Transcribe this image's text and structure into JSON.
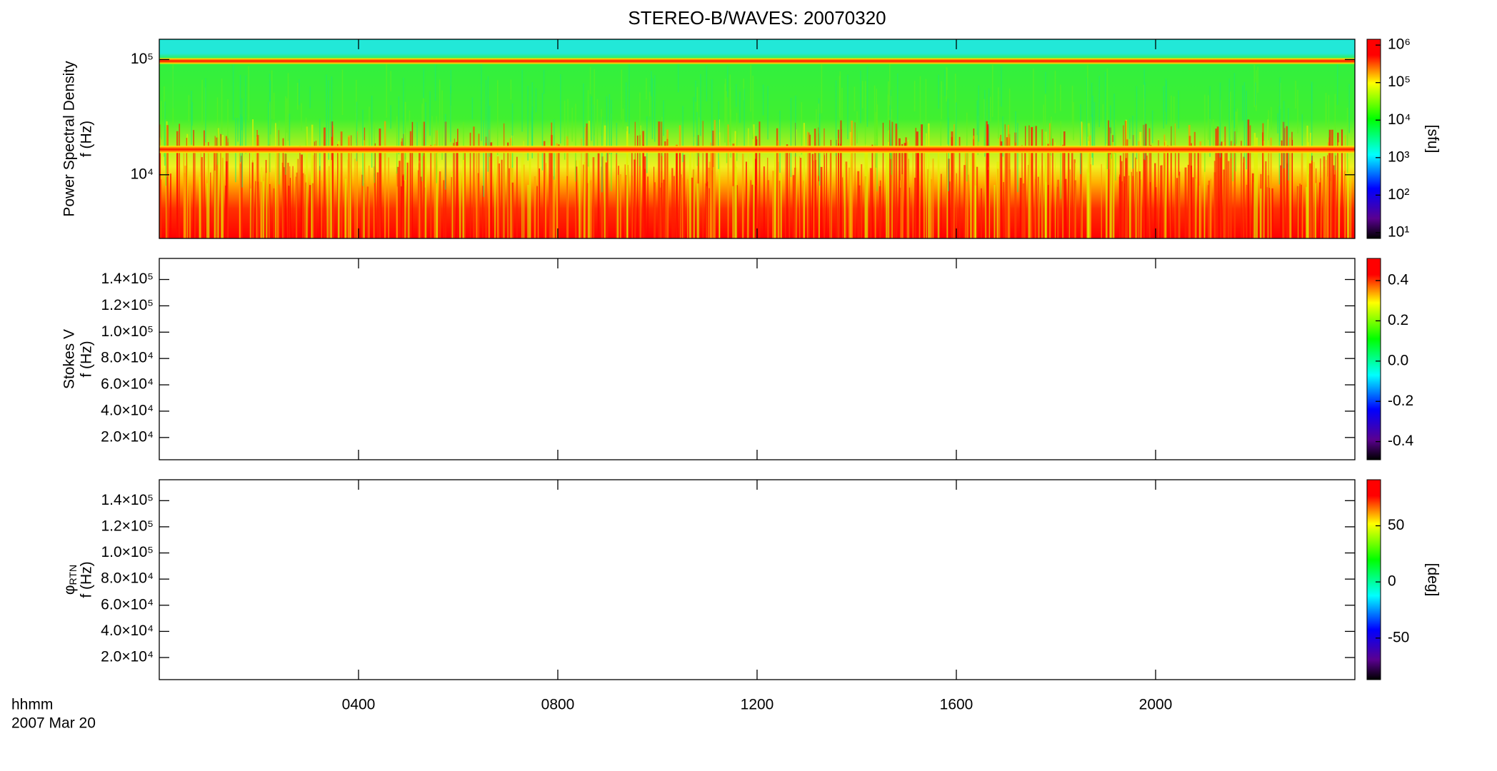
{
  "chart_data": [
    {
      "type": "spectrogram",
      "title": "STEREO-B/WAVES: 20070320",
      "ylabel": [
        "Power Spectral Density",
        "f (Hz)"
      ],
      "ylog": true,
      "ylim": [
        2800,
        150000
      ],
      "yticks": [
        {
          "value": 10000,
          "label": "10⁴"
        },
        {
          "value": 100000,
          "label": "10⁵"
        }
      ],
      "colorbar": {
        "label": "[sfu]",
        "log": true,
        "lim": [
          7,
          1430000
        ],
        "ticks": [
          {
            "value": 10,
            "label": "10¹"
          },
          {
            "value": 100,
            "label": "10²"
          },
          {
            "value": 1000,
            "label": "10³"
          },
          {
            "value": 10000,
            "label": "10⁴"
          },
          {
            "value": 100000,
            "label": "10⁵"
          },
          {
            "value": 1000000,
            "label": "10⁶"
          }
        ]
      },
      "xlim": [
        0,
        24
      ]
    },
    {
      "type": "spectrogram",
      "ylabel": [
        "Stokes V",
        "f (Hz)"
      ],
      "ylim": [
        3100,
        156000
      ],
      "yticks": [
        {
          "value": 20000,
          "label": "2.0×10⁴"
        },
        {
          "value": 40000,
          "label": "4.0×10⁴"
        },
        {
          "value": 60000,
          "label": "6.0×10⁴"
        },
        {
          "value": 80000,
          "label": "8.0×10⁴"
        },
        {
          "value": 100000,
          "label": "1.0×10⁵"
        },
        {
          "value": 120000,
          "label": "1.2×10⁵"
        },
        {
          "value": 140000,
          "label": "1.4×10⁵"
        }
      ],
      "colorbar": {
        "lim": [
          -0.49,
          0.51
        ],
        "ticks": [
          {
            "value": -0.4,
            "label": "-0.4"
          },
          {
            "value": -0.2,
            "label": "-0.2"
          },
          {
            "value": 0,
            "label": "0.0"
          },
          {
            "value": 0.2,
            "label": "0.2"
          },
          {
            "value": 0.4,
            "label": "0.4"
          }
        ]
      },
      "xlim": [
        0,
        24
      ]
    },
    {
      "type": "spectrogram",
      "ylabel": [
        {
          "symbol": "φ",
          "subscript": "RTN"
        },
        "f (Hz)"
      ],
      "ylim": [
        3100,
        156000
      ],
      "yticks": [
        {
          "value": 20000,
          "label": "2.0×10⁴"
        },
        {
          "value": 40000,
          "label": "4.0×10⁴"
        },
        {
          "value": 60000,
          "label": "6.0×10⁴"
        },
        {
          "value": 80000,
          "label": "8.0×10⁴"
        },
        {
          "value": 100000,
          "label": "1.0×10⁵"
        },
        {
          "value": 120000,
          "label": "1.2×10⁵"
        },
        {
          "value": 140000,
          "label": "1.4×10⁵"
        }
      ],
      "colorbar": {
        "label": "[deg]",
        "lim": [
          -87,
          91
        ],
        "ticks": [
          -50,
          0,
          50
        ]
      },
      "xlim": [
        0,
        24
      ],
      "xlabel": [
        "hhmm",
        "2007 Mar 20"
      ],
      "xticks": [
        {
          "value": 4,
          "label": "0400"
        },
        {
          "value": 8,
          "label": "0800"
        },
        {
          "value": 12,
          "label": "1200"
        },
        {
          "value": 16,
          "label": "1600"
        },
        {
          "value": 20,
          "label": "2000"
        }
      ]
    }
  ]
}
